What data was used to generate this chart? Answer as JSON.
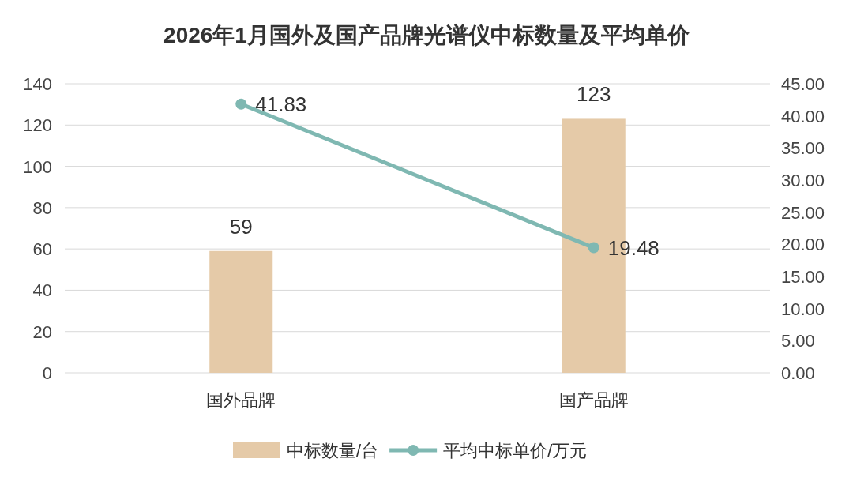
{
  "chart_data": {
    "type": "bar",
    "title": "2026年1月国外及国产品牌光谱仪中标数量及平均单价",
    "categories": [
      "国外品牌",
      "国产品牌"
    ],
    "series": [
      {
        "name": "中标数量/台",
        "color": "#e5caa8",
        "values": [
          59,
          123
        ]
      },
      {
        "name": "平均中标单价/万元",
        "type": "line",
        "axis": "y2",
        "color": "#7fb8b2",
        "values": [
          41.83,
          19.48
        ]
      }
    ],
    "ylim": [
      0,
      140
    ],
    "yticks": [
      0,
      20,
      40,
      60,
      80,
      100,
      120,
      140
    ],
    "y2lim": [
      0,
      45
    ],
    "y2ticks": [
      {
        "value": 0,
        "label": "0.00"
      },
      {
        "value": 5,
        "label": "5.00"
      },
      {
        "value": 10,
        "label": "10.00"
      },
      {
        "value": 15,
        "label": "15.00"
      },
      {
        "value": 20,
        "label": "20.00"
      },
      {
        "value": 25,
        "label": "25.00"
      },
      {
        "value": 30,
        "label": "30.00"
      },
      {
        "value": 35,
        "label": "35.00"
      },
      {
        "value": 40,
        "label": "40.00"
      },
      {
        "value": 45,
        "label": "45.00"
      }
    ],
    "marker": "circle",
    "data_labels": true,
    "grid": "y",
    "legend": "bottom"
  }
}
